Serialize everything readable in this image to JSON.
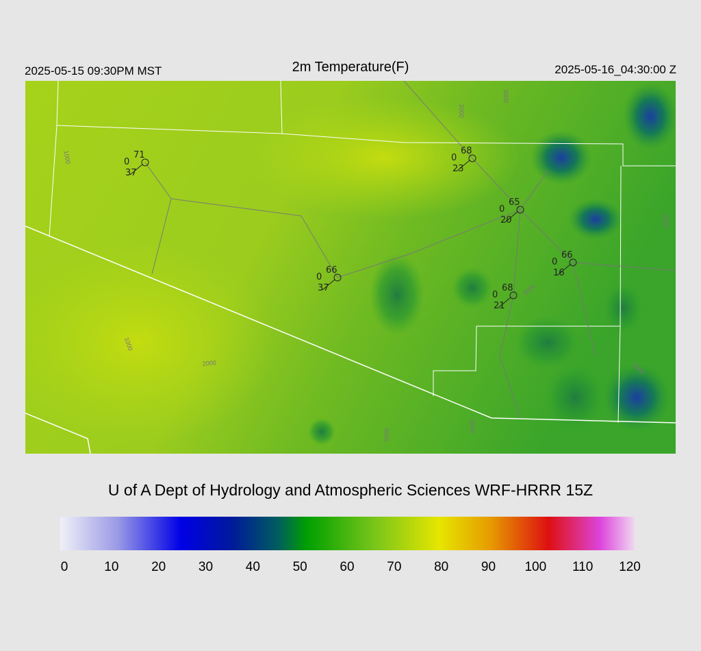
{
  "header": {
    "left": "2025-05-15 09:30PM MST",
    "title": "2m Temperature(F)",
    "right": "2025-05-16_04:30:00 Z"
  },
  "map": {
    "stations": [
      {
        "temp": 71,
        "wind": 0,
        "dew": 37
      },
      {
        "temp": 68,
        "wind": 0,
        "dew": 23
      },
      {
        "temp": 65,
        "wind": 0,
        "dew": 20
      },
      {
        "temp": 66,
        "wind": 0,
        "dew": 16
      },
      {
        "temp": 66,
        "wind": 0,
        "dew": 37
      },
      {
        "temp": 68,
        "wind": 0,
        "dew": 21
      }
    ],
    "contour_labels": [
      "1000",
      "1000",
      "2000",
      "2000",
      "3000",
      "3000",
      "4000",
      "5000",
      "4000",
      "3000"
    ]
  },
  "footer": {
    "title": "U of A Dept of Hydrology and Atmospheric Sciences WRF-HRRR 15Z"
  },
  "colorbar": {
    "range": [
      0,
      120
    ],
    "ticks": [
      0,
      10,
      20,
      30,
      40,
      50,
      60,
      70,
      80,
      90,
      100,
      110,
      120
    ]
  }
}
